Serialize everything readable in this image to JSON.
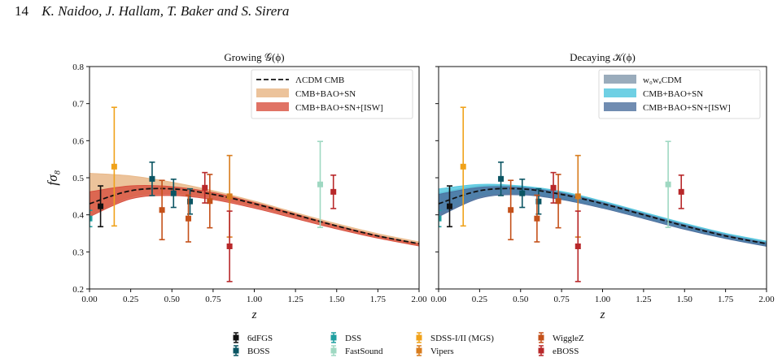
{
  "header": {
    "page_number": "14",
    "authors": "K. Naidoo, J. Hallam, T. Baker and S. Sirera"
  },
  "colors": {
    "lcdm": "#111111",
    "growing_cmb_bao_sn": "#e9b98a",
    "growing_cmb_bao_sn_isw": "#d8503e",
    "decaying_w0wacdm": "#8fa3b5",
    "decaying_cmb_bao_sn": "#56c8df",
    "decaying_cmb_bao_sn_isw": "#4c6f9e"
  },
  "chart_data": [
    {
      "type": "line",
      "title": "Growing 𝒢(ϕ)",
      "xlabel": "z",
      "ylabel": "fσ₈",
      "xlim": [
        0.0,
        2.0
      ],
      "ylim": [
        0.2,
        0.8
      ],
      "x_ticks": [
        "0.00",
        "0.25",
        "0.50",
        "0.75",
        "1.00",
        "1.25",
        "1.50",
        "1.75",
        "2.00"
      ],
      "y_ticks": [
        "0.2",
        "0.3",
        "0.4",
        "0.5",
        "0.6",
        "0.7",
        "0.8"
      ],
      "legend": [
        "ΛCDM CMB",
        "CMB+BAO+SN",
        "CMB+BAO+SN+[ISW]"
      ],
      "legend_position": "top-right",
      "series": [
        {
          "name": "ΛCDM CMB",
          "style": "dashed",
          "x": [
            0,
            0.25,
            0.5,
            0.75,
            1.0,
            1.25,
            1.5,
            1.75,
            2.0
          ],
          "y": [
            0.43,
            0.465,
            0.47,
            0.455,
            0.43,
            0.4,
            0.37,
            0.343,
            0.322
          ]
        },
        {
          "name": "CMB+BAO+SN",
          "style": "band",
          "x": [
            0,
            0.25,
            0.5,
            0.75,
            1.0,
            1.25,
            1.5,
            1.75,
            2.0
          ],
          "upper": [
            0.512,
            0.505,
            0.488,
            0.465,
            0.437,
            0.406,
            0.376,
            0.349,
            0.327
          ],
          "lower": [
            0.398,
            0.448,
            0.457,
            0.445,
            0.423,
            0.395,
            0.366,
            0.34,
            0.318
          ]
        },
        {
          "name": "CMB+BAO+SN+[ISW]",
          "style": "band",
          "x": [
            0,
            0.25,
            0.5,
            0.75,
            1.0,
            1.25,
            1.5,
            1.75,
            2.0
          ],
          "upper": [
            0.462,
            0.478,
            0.476,
            0.46,
            0.433,
            0.402,
            0.371,
            0.344,
            0.322
          ],
          "lower": [
            0.395,
            0.443,
            0.452,
            0.441,
            0.418,
            0.39,
            0.362,
            0.337,
            0.316
          ]
        }
      ]
    },
    {
      "type": "line",
      "title": "Decaying 𝒦(ϕ)",
      "xlabel": "z",
      "ylabel": "",
      "xlim": [
        0.0,
        2.0
      ],
      "ylim": [
        0.2,
        0.8
      ],
      "x_ticks": [
        "0.00",
        "0.25",
        "0.50",
        "0.75",
        "1.00",
        "1.25",
        "1.50",
        "1.75",
        "2.00"
      ],
      "legend": [
        "w₀wₐCDM",
        "CMB+BAO+SN",
        "CMB+BAO+SN+[ISW]"
      ],
      "legend_position": "top-right",
      "series": [
        {
          "name": "ΛCDM CMB",
          "style": "dashed",
          "x": [
            0,
            0.25,
            0.5,
            0.75,
            1.0,
            1.25,
            1.5,
            1.75,
            2.0
          ],
          "y": [
            0.43,
            0.465,
            0.47,
            0.455,
            0.43,
            0.4,
            0.37,
            0.343,
            0.322
          ]
        },
        {
          "name": "w₀wₐCDM",
          "style": "band",
          "x": [
            0,
            0.25,
            0.5,
            0.75,
            1.0,
            1.25,
            1.5,
            1.75,
            2.0
          ],
          "upper": [
            0.458,
            0.478,
            0.477,
            0.462,
            0.436,
            0.406,
            0.376,
            0.349,
            0.327
          ],
          "lower": [
            0.398,
            0.448,
            0.457,
            0.443,
            0.421,
            0.393,
            0.364,
            0.338,
            0.317
          ]
        },
        {
          "name": "CMB+BAO+SN",
          "style": "band",
          "x": [
            0,
            0.25,
            0.5,
            0.75,
            1.0,
            1.25,
            1.5,
            1.75,
            2.0
          ],
          "upper": [
            0.47,
            0.482,
            0.478,
            0.463,
            0.437,
            0.407,
            0.377,
            0.35,
            0.329
          ],
          "lower": [
            0.402,
            0.45,
            0.458,
            0.444,
            0.421,
            0.393,
            0.364,
            0.338,
            0.318
          ]
        },
        {
          "name": "CMB+BAO+SN+[ISW]",
          "style": "band",
          "x": [
            0,
            0.25,
            0.5,
            0.75,
            1.0,
            1.25,
            1.5,
            1.75,
            2.0
          ],
          "upper": [
            0.455,
            0.474,
            0.474,
            0.459,
            0.433,
            0.403,
            0.373,
            0.346,
            0.324
          ],
          "lower": [
            0.395,
            0.445,
            0.454,
            0.441,
            0.418,
            0.39,
            0.361,
            0.336,
            0.315
          ]
        }
      ]
    }
  ],
  "observations": [
    {
      "survey": "6dFGS",
      "color": "#111111",
      "points": [
        {
          "z": 0.067,
          "y": 0.423,
          "err": 0.055
        }
      ]
    },
    {
      "survey": "BOSS",
      "color": "#0b5563",
      "points": [
        {
          "z": 0.38,
          "y": 0.497,
          "err": 0.045
        },
        {
          "z": 0.51,
          "y": 0.458,
          "err": 0.038
        },
        {
          "z": 0.61,
          "y": 0.436,
          "err": 0.034
        }
      ]
    },
    {
      "survey": "DSS",
      "color": "#1f9fa0",
      "points": [
        {
          "z": 0.0,
          "y": 0.39,
          "err": 0.022
        }
      ]
    },
    {
      "survey": "FastSound",
      "color": "#9fd8c2",
      "points": [
        {
          "z": 1.4,
          "y": 0.482,
          "err": 0.116
        }
      ]
    },
    {
      "survey": "SDSS-I/II (MGS)",
      "color": "#f0a21a",
      "points": [
        {
          "z": 0.15,
          "y": 0.53,
          "err": 0.16
        }
      ]
    },
    {
      "survey": "Vipers",
      "color": "#d87c1d",
      "points": [
        {
          "z": 0.85,
          "y": 0.45,
          "err": 0.11
        }
      ]
    },
    {
      "survey": "WiggleZ",
      "color": "#c4511a",
      "points": [
        {
          "z": 0.44,
          "y": 0.413,
          "err": 0.08
        },
        {
          "z": 0.6,
          "y": 0.39,
          "err": 0.063
        },
        {
          "z": 0.73,
          "y": 0.437,
          "err": 0.072
        }
      ]
    },
    {
      "survey": "eBOSS",
      "color": "#b8282a",
      "points": [
        {
          "z": 0.7,
          "y": 0.473,
          "err": 0.041
        },
        {
          "z": 0.85,
          "y": 0.315,
          "err": 0.095
        },
        {
          "z": 1.48,
          "y": 0.462,
          "err": 0.045
        }
      ]
    }
  ],
  "bottom_legend": [
    "6dFGS",
    "DSS",
    "SDSS-I/II (MGS)",
    "WiggleZ",
    "BOSS",
    "FastSound",
    "Vipers",
    "eBOSS"
  ]
}
